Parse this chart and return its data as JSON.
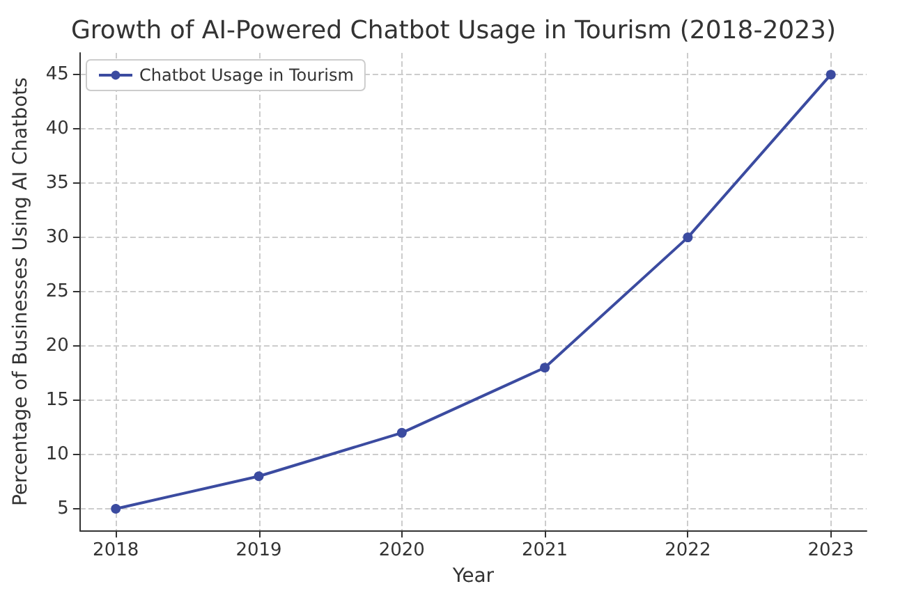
{
  "chart_data": {
    "type": "line",
    "title": "Growth of AI-Powered Chatbot Usage in Tourism (2018-2023)",
    "xlabel": "Year",
    "ylabel": "Percentage of Businesses Using AI Chatbots",
    "x": [
      2018,
      2019,
      2020,
      2021,
      2022,
      2023
    ],
    "series": [
      {
        "name": "Chatbot Usage in Tourism",
        "color": "#3b4ba0",
        "values": [
          5,
          8,
          12,
          18,
          30,
          45
        ]
      }
    ],
    "xlim": [
      2017.75,
      2023.25
    ],
    "xticks": [
      2018,
      2019,
      2020,
      2021,
      2022,
      2023
    ],
    "ylim": [
      3,
      47
    ],
    "yticks": [
      5,
      10,
      15,
      20,
      25,
      30,
      35,
      40,
      45
    ],
    "grid": true,
    "legend": "top left",
    "marker": "circle",
    "line_style": "solid"
  }
}
